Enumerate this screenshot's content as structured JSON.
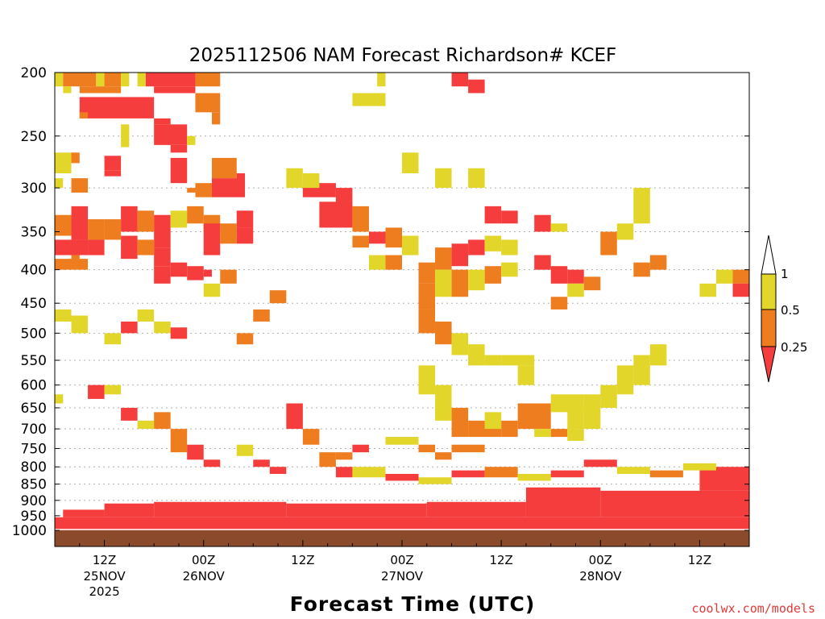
{
  "chart_data": {
    "type": "heatmap",
    "title": "2025112506 NAM Forecast Richardson# KCEF",
    "xlabel": "Forecast Time (UTC)",
    "ylabel": "",
    "y_scale": "log-pressure (hPa), inverted",
    "ylim": [
      1000,
      200
    ],
    "y_ticks": [
      200,
      250,
      300,
      350,
      400,
      450,
      500,
      550,
      600,
      650,
      700,
      750,
      800,
      850,
      900,
      950,
      1000
    ],
    "x_range_hours": [
      0,
      84
    ],
    "x_ticks": [
      {
        "hour": 6,
        "label": "12Z",
        "date": "25NOV",
        "year": "2025"
      },
      {
        "hour": 18,
        "label": "00Z",
        "date": "26NOV",
        "year": ""
      },
      {
        "hour": 30,
        "label": "12Z",
        "date": "",
        "year": ""
      },
      {
        "hour": 42,
        "label": "00Z",
        "date": "27NOV",
        "year": ""
      },
      {
        "hour": 54,
        "label": "12Z",
        "date": "",
        "year": ""
      },
      {
        "hour": 66,
        "label": "00Z",
        "date": "28NOV",
        "year": ""
      },
      {
        "hour": 78,
        "label": "12Z",
        "date": "",
        "year": ""
      }
    ],
    "colorbar": {
      "levels": [
        {
          "label": "1",
          "value": 1.0
        },
        {
          "label": "0.5",
          "value": 0.5
        },
        {
          "label": "0.25",
          "value": 0.25
        }
      ],
      "bins": [
        {
          "range": "0.5-1",
          "color": "#e3d62b"
        },
        {
          "range": "0.25-0.5",
          "color": "#ee7d20"
        },
        {
          "range": "<0.25",
          "color": "#f53d3d"
        }
      ]
    },
    "colors": {
      "low": "#f53d3d",
      "mid": "#ee7d20",
      "high": "#e3d62b",
      "ground": "#8b4a2b",
      "grid": "#b0b0b0"
    },
    "series_note": "Cells give [forecast_hour_start, forecast_hour_end, pressure_top_hPa, pressure_bottom_hPa, bin] where bin 0 = Ri<0.25, 1 = 0.25-0.5, 2 = 0.5-1",
    "regions": [
      [
        0,
        84,
        955,
        1000,
        0
      ],
      [
        1,
        6,
        930,
        955,
        0
      ],
      [
        6,
        12,
        910,
        955,
        0
      ],
      [
        12,
        28,
        905,
        955,
        0
      ],
      [
        28,
        45,
        910,
        955,
        0
      ],
      [
        45,
        57,
        905,
        955,
        0
      ],
      [
        57,
        66,
        860,
        955,
        0
      ],
      [
        66,
        84,
        870,
        955,
        0
      ],
      [
        78,
        84,
        800,
        870,
        0
      ],
      [
        0,
        1,
        200,
        210,
        2
      ],
      [
        1,
        5,
        200,
        210,
        1
      ],
      [
        5,
        6,
        200,
        210,
        2
      ],
      [
        6,
        8,
        200,
        210,
        1
      ],
      [
        8,
        9,
        200,
        210,
        2
      ],
      [
        10,
        11,
        200,
        210,
        2
      ],
      [
        11,
        17,
        200,
        210,
        0
      ],
      [
        17,
        20,
        200,
        210,
        1
      ],
      [
        1,
        2,
        210,
        215,
        2
      ],
      [
        3,
        8,
        210,
        215,
        1
      ],
      [
        12,
        17,
        210,
        215,
        0
      ],
      [
        3,
        12,
        218,
        235,
        0
      ],
      [
        17,
        20,
        215,
        230,
        1
      ],
      [
        19,
        20,
        230,
        240,
        1
      ],
      [
        3,
        4,
        230,
        235,
        1
      ],
      [
        12,
        14,
        235,
        240,
        0
      ],
      [
        8,
        9,
        240,
        260,
        2
      ],
      [
        12,
        16,
        240,
        258,
        0
      ],
      [
        16,
        17,
        250,
        258,
        2
      ],
      [
        14,
        16,
        258,
        265,
        0
      ],
      [
        0,
        2,
        265,
        285,
        2
      ],
      [
        2,
        3,
        265,
        275,
        1
      ],
      [
        6,
        8,
        268,
        282,
        0
      ],
      [
        6,
        8,
        282,
        288,
        0
      ],
      [
        19,
        22,
        270,
        290,
        1
      ],
      [
        22,
        23,
        285,
        300,
        0
      ],
      [
        19,
        23,
        290,
        310,
        0
      ],
      [
        0,
        1,
        290,
        300,
        2
      ],
      [
        2,
        4,
        290,
        305,
        1
      ],
      [
        14,
        16,
        270,
        295,
        0
      ],
      [
        16,
        17,
        300,
        305,
        1
      ],
      [
        17,
        19,
        295,
        310,
        1
      ],
      [
        0,
        2,
        330,
        355,
        1
      ],
      [
        2,
        4,
        320,
        360,
        0
      ],
      [
        4,
        6,
        335,
        360,
        1
      ],
      [
        6,
        8,
        335,
        360,
        1
      ],
      [
        8,
        10,
        320,
        350,
        0
      ],
      [
        10,
        12,
        325,
        350,
        1
      ],
      [
        12,
        14,
        330,
        370,
        0
      ],
      [
        14,
        16,
        325,
        345,
        2
      ],
      [
        16,
        18,
        320,
        340,
        1
      ],
      [
        18,
        20,
        330,
        350,
        1
      ],
      [
        22,
        24,
        325,
        345,
        0
      ],
      [
        0,
        4,
        360,
        380,
        0
      ],
      [
        4,
        6,
        360,
        380,
        0
      ],
      [
        8,
        10,
        355,
        385,
        0
      ],
      [
        10,
        12,
        360,
        380,
        1
      ],
      [
        2,
        3,
        380,
        390,
        1
      ],
      [
        12,
        14,
        370,
        395,
        0
      ],
      [
        18,
        20,
        340,
        380,
        0
      ],
      [
        20,
        22,
        340,
        365,
        1
      ],
      [
        22,
        24,
        345,
        365,
        0
      ],
      [
        0,
        2,
        385,
        400,
        1
      ],
      [
        2,
        4,
        385,
        400,
        1
      ],
      [
        12,
        14,
        395,
        420,
        0
      ],
      [
        14,
        16,
        390,
        410,
        0
      ],
      [
        16,
        18,
        395,
        415,
        0
      ],
      [
        18,
        19,
        400,
        410,
        0
      ],
      [
        30,
        34,
        295,
        310,
        0
      ],
      [
        32,
        36,
        315,
        345,
        0
      ],
      [
        36,
        38,
        320,
        350,
        1
      ],
      [
        34,
        36,
        300,
        320,
        0
      ],
      [
        28,
        30,
        280,
        300,
        2
      ],
      [
        30,
        32,
        285,
        300,
        2
      ],
      [
        36,
        38,
        355,
        370,
        1
      ],
      [
        38,
        40,
        350,
        365,
        0
      ],
      [
        40,
        42,
        345,
        370,
        1
      ],
      [
        42,
        44,
        355,
        380,
        2
      ],
      [
        38,
        40,
        380,
        400,
        2
      ],
      [
        40,
        42,
        380,
        400,
        1
      ],
      [
        44,
        46,
        390,
        420,
        1
      ],
      [
        46,
        48,
        370,
        400,
        1
      ],
      [
        48,
        50,
        365,
        395,
        0
      ],
      [
        50,
        52,
        360,
        380,
        0
      ],
      [
        52,
        54,
        355,
        375,
        2
      ],
      [
        54,
        56,
        360,
        380,
        2
      ],
      [
        44,
        46,
        420,
        460,
        1
      ],
      [
        46,
        48,
        400,
        440,
        2
      ],
      [
        48,
        50,
        400,
        440,
        1
      ],
      [
        50,
        52,
        400,
        430,
        2
      ],
      [
        52,
        54,
        395,
        420,
        1
      ],
      [
        54,
        56,
        390,
        410,
        2
      ],
      [
        58,
        60,
        380,
        400,
        0
      ],
      [
        60,
        62,
        395,
        420,
        0
      ],
      [
        62,
        64,
        400,
        420,
        0
      ],
      [
        36,
        40,
        215,
        225,
        2
      ],
      [
        42,
        44,
        265,
        285,
        2
      ],
      [
        46,
        48,
        280,
        300,
        2
      ],
      [
        48,
        50,
        200,
        210,
        0
      ],
      [
        50,
        52,
        205,
        215,
        0
      ],
      [
        39,
        40,
        200,
        210,
        2
      ],
      [
        50,
        52,
        280,
        300,
        2
      ],
      [
        54,
        56,
        325,
        340,
        0
      ],
      [
        58,
        60,
        330,
        350,
        0
      ],
      [
        60,
        62,
        340,
        350,
        2
      ],
      [
        52,
        54,
        320,
        340,
        0
      ],
      [
        44,
        46,
        460,
        500,
        1
      ],
      [
        46,
        48,
        480,
        520,
        1
      ],
      [
        48,
        50,
        500,
        540,
        2
      ],
      [
        50,
        52,
        520,
        560,
        2
      ],
      [
        52,
        54,
        540,
        560,
        2
      ],
      [
        54,
        58,
        540,
        560,
        2
      ],
      [
        56,
        58,
        560,
        600,
        2
      ],
      [
        44,
        46,
        560,
        620,
        2
      ],
      [
        46,
        48,
        600,
        680,
        2
      ],
      [
        48,
        50,
        650,
        720,
        1
      ],
      [
        50,
        54,
        680,
        720,
        1
      ],
      [
        54,
        56,
        680,
        720,
        1
      ],
      [
        52,
        54,
        660,
        700,
        2
      ],
      [
        56,
        60,
        640,
        700,
        1
      ],
      [
        60,
        64,
        620,
        660,
        2
      ],
      [
        64,
        66,
        620,
        700,
        2
      ],
      [
        66,
        68,
        600,
        650,
        2
      ],
      [
        68,
        70,
        560,
        620,
        2
      ],
      [
        70,
        72,
        540,
        600,
        2
      ],
      [
        62,
        64,
        650,
        700,
        2
      ],
      [
        72,
        74,
        520,
        560,
        2
      ],
      [
        58,
        60,
        700,
        720,
        2
      ],
      [
        60,
        62,
        700,
        720,
        1
      ],
      [
        62,
        64,
        700,
        730,
        2
      ],
      [
        48,
        52,
        740,
        760,
        1
      ],
      [
        46,
        48,
        760,
        780,
        1
      ],
      [
        40,
        44,
        720,
        740,
        2
      ],
      [
        44,
        46,
        740,
        760,
        1
      ],
      [
        36,
        38,
        740,
        760,
        0
      ],
      [
        34,
        36,
        760,
        780,
        1
      ],
      [
        0,
        1,
        620,
        640,
        2
      ],
      [
        4,
        6,
        600,
        630,
        0
      ],
      [
        6,
        8,
        600,
        620,
        2
      ],
      [
        10,
        12,
        680,
        700,
        2
      ],
      [
        8,
        10,
        650,
        680,
        0
      ],
      [
        12,
        14,
        660,
        700,
        1
      ],
      [
        14,
        16,
        700,
        760,
        1
      ],
      [
        16,
        18,
        740,
        780,
        0
      ],
      [
        18,
        20,
        780,
        800,
        0
      ],
      [
        22,
        24,
        740,
        770,
        2
      ],
      [
        24,
        26,
        780,
        800,
        0
      ],
      [
        26,
        28,
        800,
        820,
        0
      ],
      [
        28,
        30,
        640,
        700,
        0
      ],
      [
        30,
        32,
        700,
        740,
        1
      ],
      [
        32,
        34,
        760,
        800,
        1
      ],
      [
        34,
        36,
        800,
        830,
        0
      ],
      [
        36,
        40,
        800,
        830,
        2
      ],
      [
        40,
        44,
        820,
        840,
        0
      ],
      [
        44,
        48,
        830,
        850,
        2
      ],
      [
        48,
        52,
        810,
        830,
        0
      ],
      [
        52,
        56,
        800,
        830,
        1
      ],
      [
        56,
        60,
        820,
        840,
        2
      ],
      [
        60,
        64,
        810,
        830,
        0
      ],
      [
        64,
        68,
        780,
        800,
        0
      ],
      [
        68,
        72,
        800,
        820,
        2
      ],
      [
        72,
        76,
        810,
        830,
        1
      ],
      [
        76,
        80,
        790,
        810,
        2
      ],
      [
        82,
        84,
        400,
        420,
        1
      ],
      [
        80,
        82,
        400,
        420,
        2
      ],
      [
        82,
        84,
        420,
        440,
        0
      ],
      [
        78,
        80,
        420,
        440,
        2
      ],
      [
        72,
        74,
        380,
        400,
        1
      ],
      [
        70,
        72,
        390,
        410,
        1
      ],
      [
        66,
        68,
        350,
        380,
        1
      ],
      [
        68,
        70,
        340,
        360,
        2
      ],
      [
        70,
        72,
        300,
        340,
        2
      ],
      [
        60,
        62,
        440,
        460,
        1
      ],
      [
        62,
        64,
        420,
        440,
        2
      ],
      [
        64,
        66,
        410,
        430,
        1
      ],
      [
        26,
        28,
        430,
        450,
        1
      ],
      [
        24,
        26,
        460,
        480,
        1
      ],
      [
        22,
        24,
        500,
        520,
        1
      ],
      [
        20,
        22,
        400,
        420,
        1
      ],
      [
        18,
        20,
        420,
        440,
        2
      ],
      [
        10,
        12,
        460,
        480,
        2
      ],
      [
        8,
        10,
        480,
        500,
        0
      ],
      [
        6,
        8,
        500,
        520,
        2
      ],
      [
        2,
        4,
        470,
        500,
        2
      ],
      [
        0,
        2,
        460,
        480,
        2
      ],
      [
        12,
        14,
        480,
        500,
        2
      ],
      [
        14,
        16,
        490,
        510,
        0
      ]
    ]
  },
  "credit": "coolwx.com/models"
}
